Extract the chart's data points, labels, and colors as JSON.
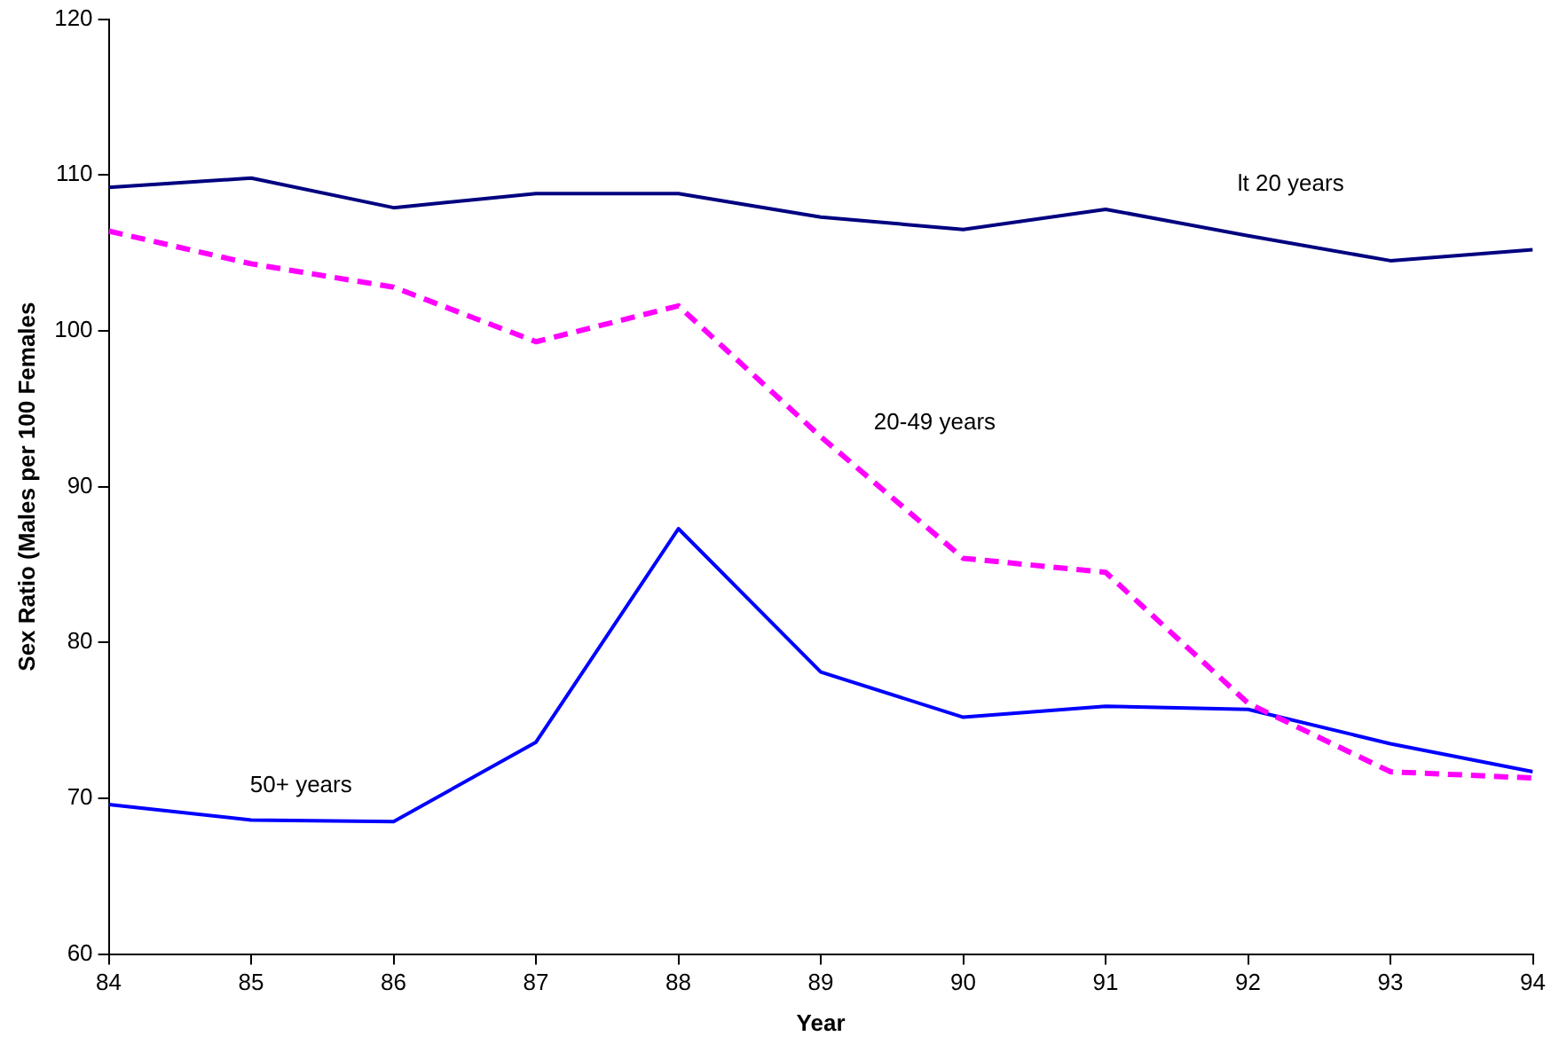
{
  "chart_data": {
    "type": "line",
    "xlabel": "Year",
    "ylabel": "Sex Ratio (Males per 100 Females",
    "x": [
      84,
      85,
      86,
      87,
      88,
      89,
      90,
      91,
      92,
      93,
      94
    ],
    "xlim": [
      84,
      94
    ],
    "xticks": [
      84,
      85,
      86,
      87,
      88,
      89,
      90,
      91,
      92,
      93,
      94
    ],
    "ylim": [
      60,
      120
    ],
    "yticks": [
      60,
      70,
      80,
      90,
      100,
      110,
      120
    ],
    "grid": false,
    "legend": false,
    "marker": "none",
    "series": [
      {
        "name": "lt 20 years",
        "color": "#000080",
        "line_style": "solid",
        "values": [
          109.2,
          109.8,
          107.9,
          108.8,
          108.8,
          107.3,
          106.5,
          107.8,
          106.1,
          104.5,
          105.2
        ]
      },
      {
        "name": "20-49 years",
        "color": "#ff00ff",
        "line_style": "dashed",
        "values": [
          106.4,
          104.3,
          102.8,
          99.3,
          101.6,
          93.2,
          85.4,
          84.5,
          76.1,
          71.7,
          71.3
        ]
      },
      {
        "name": "50+ years",
        "color": "#0000ff",
        "line_style": "solid",
        "values": [
          69.6,
          68.6,
          68.5,
          73.6,
          87.3,
          78.1,
          75.2,
          75.9,
          75.7,
          73.5,
          71.7
        ]
      }
    ]
  }
}
